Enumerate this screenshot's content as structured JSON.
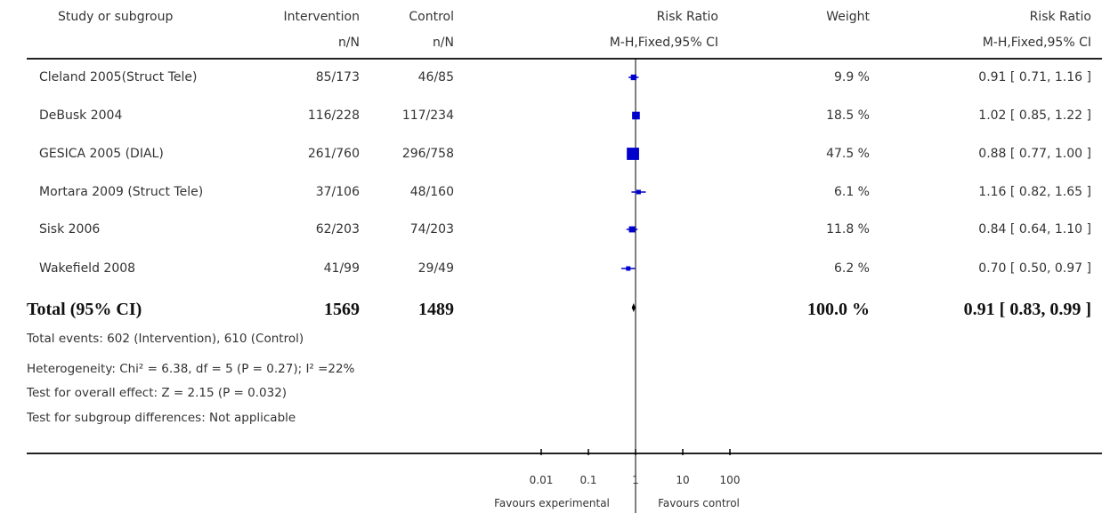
{
  "header": {
    "study": "Study or subgroup",
    "intervention": "Intervention",
    "control": "Control",
    "rr": "Risk Ratio",
    "weight": "Weight",
    "rr_right": "Risk Ratio",
    "nN1": "n/N",
    "nN2": "n/N",
    "method": "M-H,Fixed,95% CI",
    "method_right": "M-H,Fixed,95% CI"
  },
  "footer": {
    "events": "Total events: 602 (Intervention), 610 (Control)",
    "heterogeneity": "Heterogeneity: Chi² = 6.38, df = 5 (P = 0.27); I² =22%",
    "overall": "Test for overall effect: Z = 2.15 (P = 0.032)",
    "subgroup": "Test for subgroup differences: Not applicable",
    "favours_left": "Favours experimental",
    "favours_right": "Favours control"
  },
  "chart_data": {
    "type": "forest",
    "scale": "log",
    "xlim": [
      0.01,
      100
    ],
    "ticks": [
      {
        "value": 0.01,
        "label": "0.01"
      },
      {
        "value": 0.1,
        "label": "0.1"
      },
      {
        "value": 1,
        "label": "1"
      },
      {
        "value": 10,
        "label": "10"
      },
      {
        "value": 100,
        "label": "100"
      }
    ],
    "studies": [
      {
        "name": "Cleland 2005(Struct Tele)",
        "intervention": "85/173",
        "control": "46/85",
        "weight": "9.9 %",
        "weight_value": 9.9,
        "ci_text": "0.91 [ 0.71, 1.16 ]",
        "rr": 0.91,
        "lo": 0.71,
        "hi": 1.16
      },
      {
        "name": "DeBusk 2004",
        "intervention": "116/228",
        "control": "117/234",
        "weight": "18.5 %",
        "weight_value": 18.5,
        "ci_text": "1.02 [ 0.85, 1.22 ]",
        "rr": 1.02,
        "lo": 0.85,
        "hi": 1.22
      },
      {
        "name": "GESICA 2005 (DIAL)",
        "intervention": "261/760",
        "control": "296/758",
        "weight": "47.5 %",
        "weight_value": 47.5,
        "ci_text": "0.88 [ 0.77, 1.00 ]",
        "rr": 0.88,
        "lo": 0.77,
        "hi": 1.0
      },
      {
        "name": "Mortara 2009 (Struct Tele)",
        "intervention": "37/106",
        "control": "48/160",
        "weight": "6.1 %",
        "weight_value": 6.1,
        "ci_text": "1.16 [ 0.82, 1.65 ]",
        "rr": 1.16,
        "lo": 0.82,
        "hi": 1.65
      },
      {
        "name": "Sisk 2006",
        "intervention": "62/203",
        "control": "74/203",
        "weight": "11.8 %",
        "weight_value": 11.8,
        "ci_text": "0.84 [ 0.64, 1.10 ]",
        "rr": 0.84,
        "lo": 0.64,
        "hi": 1.1
      },
      {
        "name": "Wakefield 2008",
        "intervention": "41/99",
        "control": "29/49",
        "weight": "6.2 %",
        "weight_value": 6.2,
        "ci_text": "0.70 [ 0.50, 0.97 ]",
        "rr": 0.7,
        "lo": 0.5,
        "hi": 0.97
      }
    ],
    "total": {
      "name": "Total (95% CI)",
      "intervention": "1569",
      "control": "1489",
      "weight": "100.0 %",
      "ci_text": "0.91 [ 0.83, 0.99 ]",
      "rr": 0.91,
      "lo": 0.83,
      "hi": 0.99
    },
    "marker_color": "#0000cc",
    "axis_color": "#000000"
  }
}
